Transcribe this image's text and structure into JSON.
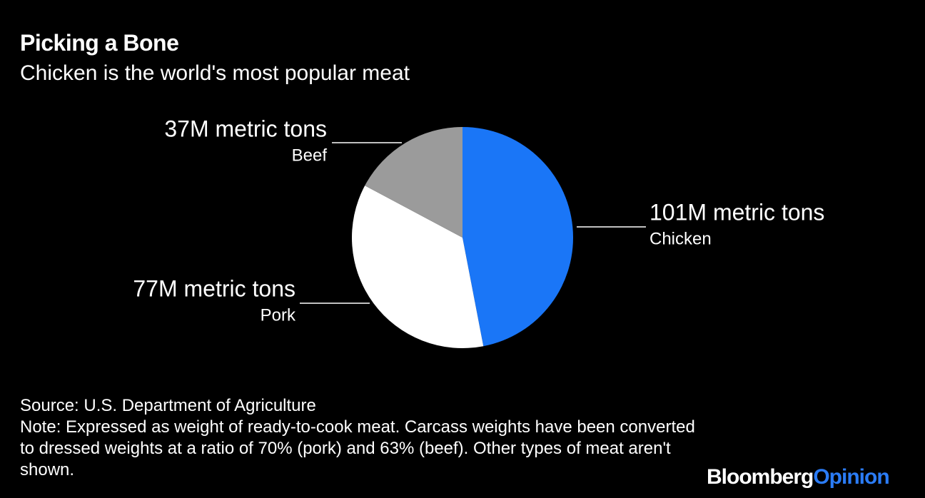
{
  "chart_data": {
    "type": "pie",
    "title": "Picking a Bone",
    "subtitle": "Chicken is the world's most popular meat",
    "categories": [
      "Chicken",
      "Pork",
      "Beef"
    ],
    "values": [
      101,
      77,
      37
    ],
    "value_labels": [
      "101M metric tons",
      "77M metric tons",
      "37M metric tons"
    ],
    "colors": [
      "#1a76f7",
      "#ffffff",
      "#9b9b9b"
    ],
    "source": "Source: U.S. Department of Agriculture",
    "note": "Note: Expressed as weight of ready-to-cook meat. Carcass weights have been converted to dressed weights at a ratio of 70% (pork) and 63% (beef). Other types of meat aren't shown.",
    "logo": [
      "Bloomberg",
      "Opinion"
    ]
  }
}
